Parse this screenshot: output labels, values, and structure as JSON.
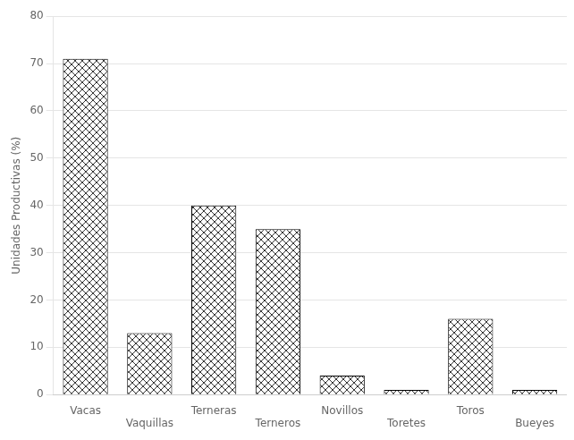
{
  "chart_data": {
    "type": "bar",
    "categories": [
      "Vacas",
      "Vaquillas",
      "Terneras",
      "Terneros",
      "Novillos",
      "Toretes",
      "Toros",
      "Bueyes"
    ],
    "values": [
      71,
      13,
      40,
      35,
      4,
      1,
      16,
      1
    ],
    "color": "#ffffff",
    "ylabel": "Unidades Productivas (%)",
    "ylim": [
      0,
      80
    ],
    "yticks": [
      0,
      10,
      20,
      30,
      40,
      50,
      60,
      70,
      80
    ],
    "grid": true
  }
}
